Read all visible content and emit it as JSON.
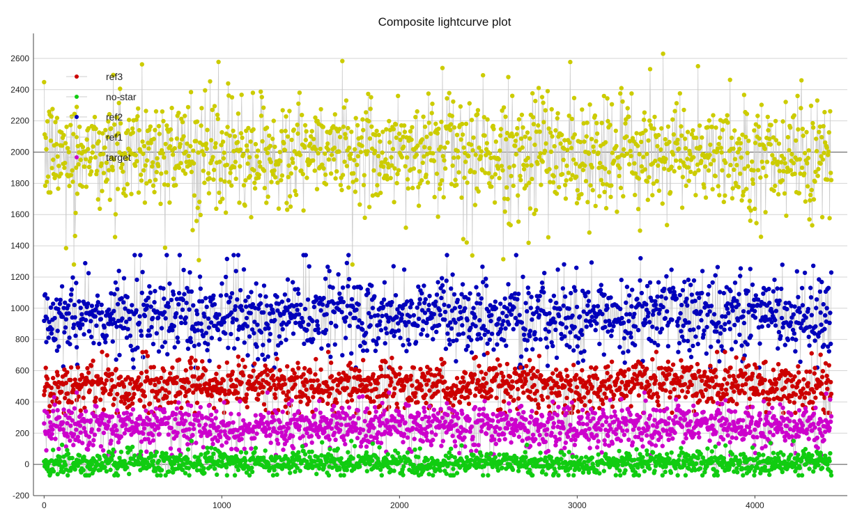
{
  "chart_data": {
    "type": "scatter",
    "title": "Composite lightcurve plot",
    "xlabel": "",
    "ylabel": "",
    "xlim": [
      -60,
      4520
    ],
    "ylim": [
      -200,
      2760
    ],
    "x_ticks": [
      0,
      1000,
      2000,
      3000,
      4000
    ],
    "y_ticks": [
      -200,
      0,
      200,
      400,
      600,
      800,
      1000,
      1200,
      1400,
      1600,
      1800,
      2000,
      2200,
      2400,
      2600
    ],
    "reference_lines_y": [
      0,
      2000
    ],
    "grid": "horizontal",
    "connecting_line_color": "#c8c8c8",
    "legend_position": "top-left",
    "x_range_observed": [
      0,
      4430
    ],
    "series": [
      {
        "name": "ref3",
        "color": "#cc0000",
        "x_range": [
          0,
          4430
        ],
        "y_mean": 500,
        "y_spread": 75,
        "y_min": 330,
        "y_max": 720,
        "samples": [
          [
            0,
            450
          ],
          [
            250,
            540
          ],
          [
            500,
            470
          ],
          [
            750,
            560
          ],
          [
            1000,
            480
          ],
          [
            1250,
            530
          ],
          [
            1500,
            460
          ],
          [
            1750,
            550
          ],
          [
            2000,
            500
          ],
          [
            2250,
            470
          ],
          [
            2500,
            560
          ],
          [
            2750,
            490
          ],
          [
            3000,
            460
          ],
          [
            3250,
            530
          ],
          [
            3500,
            500
          ],
          [
            3750,
            560
          ],
          [
            4000,
            510
          ],
          [
            4250,
            480
          ],
          [
            4430,
            540
          ]
        ]
      },
      {
        "name": "no-star",
        "color": "#11cc11",
        "x_range": [
          0,
          4430
        ],
        "y_mean": 10,
        "y_spread": 35,
        "y_min": -70,
        "y_max": 150,
        "samples": [
          [
            0,
            20
          ],
          [
            250,
            -10
          ],
          [
            500,
            30
          ],
          [
            750,
            0
          ],
          [
            1000,
            40
          ],
          [
            1250,
            -20
          ],
          [
            1500,
            50
          ],
          [
            1750,
            10
          ],
          [
            2000,
            20
          ],
          [
            2250,
            -10
          ],
          [
            2500,
            40
          ],
          [
            2750,
            0
          ],
          [
            3000,
            -30
          ],
          [
            3250,
            20
          ],
          [
            3500,
            10
          ],
          [
            3750,
            30
          ],
          [
            4000,
            -10
          ],
          [
            4250,
            20
          ],
          [
            4430,
            40
          ]
        ]
      },
      {
        "name": "ref2",
        "color": "#0000bb",
        "x_range": [
          0,
          4430
        ],
        "y_mean": 950,
        "y_spread": 120,
        "y_min": 620,
        "y_max": 1340,
        "samples": [
          [
            0,
            900
          ],
          [
            250,
            1000
          ],
          [
            500,
            950
          ],
          [
            750,
            1050
          ],
          [
            1000,
            880
          ],
          [
            1250,
            920
          ],
          [
            1500,
            980
          ],
          [
            1750,
            1020
          ],
          [
            2000,
            940
          ],
          [
            2250,
            990
          ],
          [
            2500,
            900
          ],
          [
            2750,
            860
          ],
          [
            3000,
            930
          ],
          [
            3250,
            1000
          ],
          [
            3500,
            1050
          ],
          [
            3750,
            960
          ],
          [
            4000,
            1000
          ],
          [
            4250,
            900
          ],
          [
            4430,
            1050
          ]
        ]
      },
      {
        "name": "ref1",
        "color": "#cccc00",
        "x_range": [
          0,
          4430
        ],
        "y_mean": 1990,
        "y_spread": 170,
        "y_min": 1280,
        "y_max": 2630,
        "samples": [
          [
            0,
            1950
          ],
          [
            250,
            2050
          ],
          [
            500,
            2000
          ],
          [
            750,
            2100
          ],
          [
            1000,
            1900
          ],
          [
            1250,
            1850
          ],
          [
            1500,
            2000
          ],
          [
            1750,
            2050
          ],
          [
            2000,
            2000
          ],
          [
            2250,
            2100
          ],
          [
            2500,
            1950
          ],
          [
            2750,
            1900
          ],
          [
            3000,
            1950
          ],
          [
            3250,
            2000
          ],
          [
            3500,
            2050
          ],
          [
            3750,
            1950
          ],
          [
            4000,
            2000
          ],
          [
            4250,
            1900
          ],
          [
            4430,
            2000
          ]
        ]
      },
      {
        "name": "target",
        "color": "#cc00cc",
        "x_range": [
          0,
          4430
        ],
        "y_mean": 240,
        "y_spread": 65,
        "y_min": 60,
        "y_max": 460,
        "samples": [
          [
            0,
            220
          ],
          [
            250,
            250
          ],
          [
            500,
            230
          ],
          [
            750,
            280
          ],
          [
            1000,
            210
          ],
          [
            1250,
            240
          ],
          [
            1500,
            260
          ],
          [
            1750,
            230
          ],
          [
            2000,
            250
          ],
          [
            2250,
            270
          ],
          [
            2500,
            220
          ],
          [
            2750,
            250
          ],
          [
            3000,
            200
          ],
          [
            3250,
            240
          ],
          [
            3500,
            260
          ],
          [
            3750,
            300
          ],
          [
            4000,
            230
          ],
          [
            4250,
            210
          ],
          [
            4430,
            280
          ]
        ]
      }
    ]
  }
}
